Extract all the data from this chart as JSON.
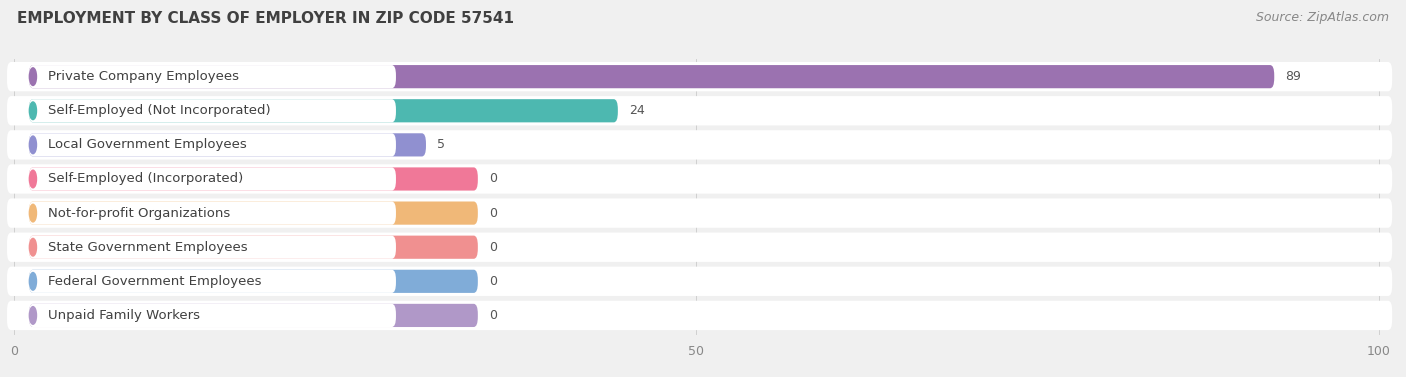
{
  "title": "EMPLOYMENT BY CLASS OF EMPLOYER IN ZIP CODE 57541",
  "source": "Source: ZipAtlas.com",
  "categories": [
    "Private Company Employees",
    "Self-Employed (Not Incorporated)",
    "Local Government Employees",
    "Self-Employed (Incorporated)",
    "Not-for-profit Organizations",
    "State Government Employees",
    "Federal Government Employees",
    "Unpaid Family Workers"
  ],
  "values": [
    89,
    24,
    5,
    0,
    0,
    0,
    0,
    0
  ],
  "bar_colors": [
    "#9b72b0",
    "#4db8b0",
    "#9090d0",
    "#f07898",
    "#f0b878",
    "#f09090",
    "#80acd8",
    "#b098c8"
  ],
  "label_bg_colors": [
    "#ede0f5",
    "#d0f0ee",
    "#dcdcf5",
    "#fce0e8",
    "#fdecd8",
    "#fce0dc",
    "#daeaf8",
    "#e8ddf5"
  ],
  "xlim_data": [
    0,
    100
  ],
  "xticks": [
    0,
    50,
    100
  ],
  "bg_color": "#f0f0f0",
  "title_fontsize": 11,
  "source_fontsize": 9,
  "label_fontsize": 9.5,
  "value_fontsize": 9,
  "tick_fontsize": 9,
  "bar_height": 0.68,
  "row_padding": 0.18
}
